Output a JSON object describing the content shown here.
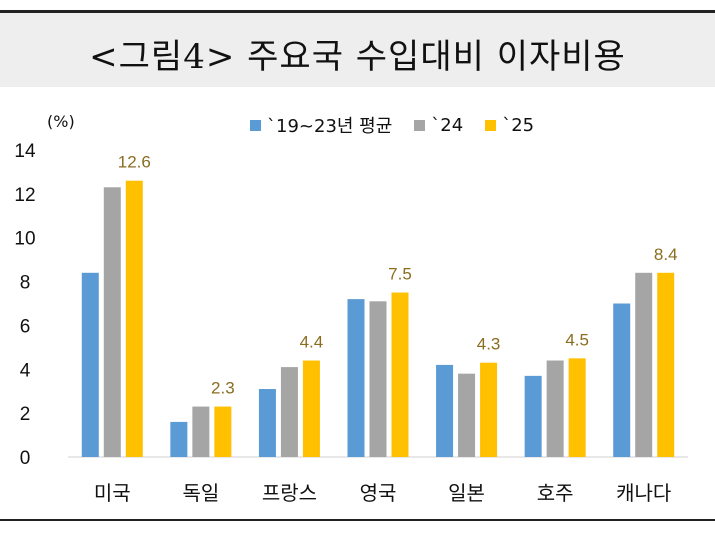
{
  "title": "<그림4> 주요국 수입대비 이자비용",
  "colors": {
    "title_bg": "#eeeeee",
    "value_label": "#8a6d1f"
  },
  "chart_data": {
    "type": "bar",
    "ylabel": "(%)",
    "ylim": [
      0,
      14
    ],
    "yticks": [
      0,
      2,
      4,
      6,
      8,
      10,
      12,
      14
    ],
    "categories": [
      "미국",
      "독일",
      "프랑스",
      "영국",
      "일본",
      "호주",
      "캐나다"
    ],
    "series": [
      {
        "name": "`19~23년 평균",
        "color": "#5b9bd5",
        "values": [
          8.4,
          1.6,
          3.1,
          7.2,
          4.2,
          3.7,
          7.0
        ]
      },
      {
        "name": "`24",
        "color": "#a5a5a5",
        "values": [
          12.3,
          2.3,
          4.1,
          7.1,
          3.8,
          4.4,
          8.4
        ]
      },
      {
        "name": "`25",
        "color": "#ffc000",
        "values": [
          12.6,
          2.3,
          4.4,
          7.5,
          4.3,
          4.5,
          8.4
        ]
      }
    ],
    "data_labels": {
      "series": "`25",
      "values": [
        "12.6",
        "2.3",
        "4.4",
        "7.5",
        "4.3",
        "4.5",
        "8.4"
      ]
    },
    "grid": false,
    "legend_position": "top"
  }
}
